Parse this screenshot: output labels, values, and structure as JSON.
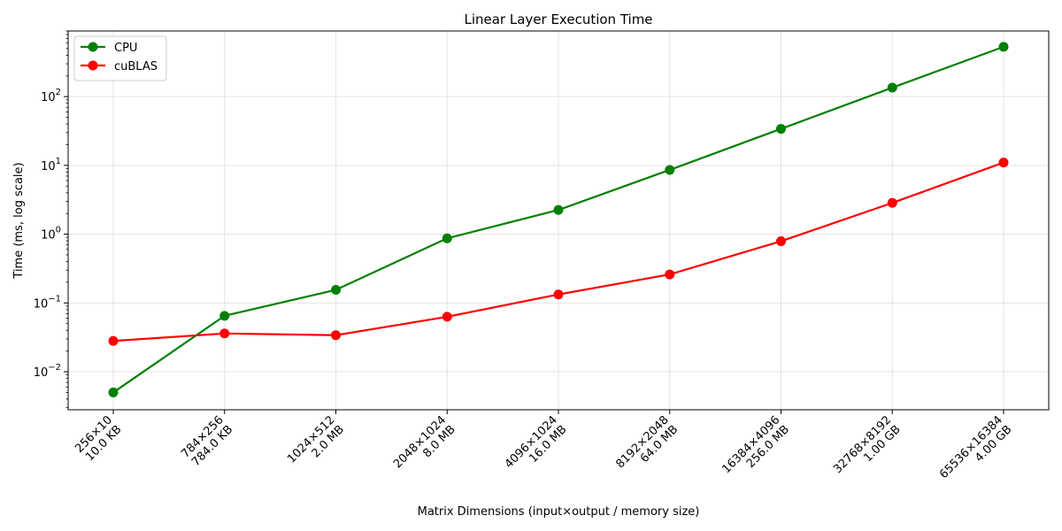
{
  "chart_data": {
    "type": "line",
    "title": "Linear Layer Execution Time",
    "xlabel": "Matrix Dimensions (input×output / memory size)",
    "ylabel": "Time (ms, log scale)",
    "y_scale": "log",
    "ylim": [
      0.0028,
      900
    ],
    "grid": true,
    "legend_position": "top-left",
    "categories": [
      [
        "256×10",
        "10.0 KB"
      ],
      [
        "784×256",
        "784.0 KB"
      ],
      [
        "1024×512",
        "2.0 MB"
      ],
      [
        "2048×1024",
        "8.0 MB"
      ],
      [
        "4096×1024",
        "16.0 MB"
      ],
      [
        "8192×2048",
        "64.0 MB"
      ],
      [
        "16384×4096",
        "256.0 MB"
      ],
      [
        "32768×8192",
        "1.00 GB"
      ],
      [
        "65536×16384",
        "4.00 GB"
      ]
    ],
    "y_ticks": [
      {
        "value": 0.01,
        "base": "10",
        "exp": "−2"
      },
      {
        "value": 0.1,
        "base": "10",
        "exp": "−1"
      },
      {
        "value": 1,
        "base": "10",
        "exp": "0"
      },
      {
        "value": 10,
        "base": "10",
        "exp": "1"
      },
      {
        "value": 100,
        "base": "10",
        "exp": "2"
      }
    ],
    "series": [
      {
        "name": "CPU",
        "color": "#008000",
        "values": [
          0.005,
          0.065,
          0.155,
          0.87,
          2.25,
          8.6,
          34,
          135,
          530
        ]
      },
      {
        "name": "cuBLAS",
        "color": "#ff0000",
        "values": [
          0.028,
          0.036,
          0.034,
          0.063,
          0.133,
          0.26,
          0.79,
          2.85,
          11
        ]
      }
    ]
  }
}
